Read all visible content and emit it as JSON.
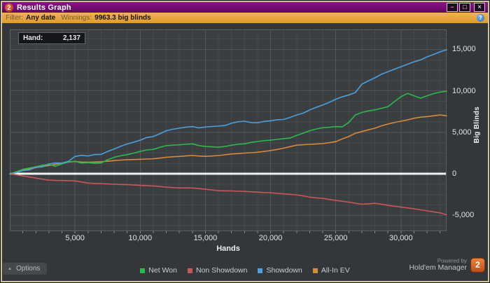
{
  "window": {
    "title": "Results Graph",
    "app_badge": "2",
    "controls": {
      "minimize": "−",
      "maximize": "□",
      "close": "×"
    }
  },
  "filter_bar": {
    "filter_label": "Filter:",
    "filter_value": "Any date",
    "winnings_label": "Winnings:",
    "winnings_value": "9963.3 big blinds",
    "help_glyph": "?"
  },
  "tooltip": {
    "label": "Hand:",
    "value": "2,137"
  },
  "chart_data": {
    "type": "line",
    "xlabel": "Hands",
    "ylabel": "Big Blinds",
    "xlim": [
      0,
      33500
    ],
    "ylim": [
      -6900,
      17400
    ],
    "x_ticks": [
      5000,
      10000,
      15000,
      20000,
      25000,
      30000
    ],
    "y_ticks": [
      -5000,
      0,
      5000,
      10000,
      15000
    ],
    "x_minor_step": 1000,
    "x_major_step": 5000,
    "y_minor_step": 1250,
    "y_major_step": 5000,
    "grid": true,
    "legend_position": "bottom",
    "colors": {
      "plot_bg": "#3a3e41",
      "grid_minor": "#45494c",
      "grid_major": "#52575a",
      "zero_line": "#f2f2f2",
      "plot_border": "#5c6166",
      "tick": "#8a8e91"
    },
    "series": [
      {
        "name": "Net Won",
        "slug": "net-won",
        "color": "#2eb84b",
        "z": 3,
        "points": [
          [
            0,
            0
          ],
          [
            500,
            260
          ],
          [
            1000,
            550
          ],
          [
            1500,
            700
          ],
          [
            2000,
            860
          ],
          [
            2500,
            1050
          ],
          [
            3000,
            1120
          ],
          [
            3500,
            920
          ],
          [
            4000,
            1200
          ],
          [
            4500,
            1440
          ],
          [
            5000,
            1520
          ],
          [
            5500,
            1310
          ],
          [
            6000,
            1360
          ],
          [
            6500,
            1270
          ],
          [
            7000,
            1310
          ],
          [
            7500,
            1700
          ],
          [
            8000,
            2000
          ],
          [
            8500,
            2190
          ],
          [
            9000,
            2310
          ],
          [
            9500,
            2500
          ],
          [
            10000,
            2700
          ],
          [
            10500,
            2890
          ],
          [
            11000,
            2950
          ],
          [
            11500,
            3190
          ],
          [
            12000,
            3400
          ],
          [
            12500,
            3460
          ],
          [
            13000,
            3500
          ],
          [
            13500,
            3560
          ],
          [
            14000,
            3620
          ],
          [
            14500,
            3410
          ],
          [
            15000,
            3300
          ],
          [
            15500,
            3260
          ],
          [
            16000,
            3210
          ],
          [
            16500,
            3300
          ],
          [
            17000,
            3450
          ],
          [
            17500,
            3560
          ],
          [
            18000,
            3620
          ],
          [
            18500,
            3790
          ],
          [
            19000,
            3900
          ],
          [
            19500,
            4000
          ],
          [
            20000,
            4060
          ],
          [
            20500,
            4150
          ],
          [
            21000,
            4250
          ],
          [
            21500,
            4310
          ],
          [
            22000,
            4640
          ],
          [
            22500,
            4900
          ],
          [
            23000,
            5200
          ],
          [
            23500,
            5410
          ],
          [
            24000,
            5560
          ],
          [
            24500,
            5610
          ],
          [
            25000,
            5700
          ],
          [
            25500,
            5660
          ],
          [
            26000,
            6200
          ],
          [
            26500,
            7100
          ],
          [
            27000,
            7400
          ],
          [
            27500,
            7590
          ],
          [
            28000,
            7710
          ],
          [
            28500,
            7900
          ],
          [
            29000,
            8090
          ],
          [
            29500,
            8700
          ],
          [
            30000,
            9300
          ],
          [
            30500,
            9700
          ],
          [
            31000,
            9400
          ],
          [
            31500,
            9120
          ],
          [
            32000,
            9400
          ],
          [
            32500,
            9660
          ],
          [
            33000,
            9850
          ],
          [
            33500,
            9963
          ]
        ]
      },
      {
        "name": "Non Showdown",
        "slug": "non-showdown",
        "color": "#c95757",
        "z": 1,
        "points": [
          [
            0,
            0
          ],
          [
            500,
            -120
          ],
          [
            1000,
            -250
          ],
          [
            1500,
            -380
          ],
          [
            2000,
            -500
          ],
          [
            2500,
            -640
          ],
          [
            3000,
            -760
          ],
          [
            3500,
            -790
          ],
          [
            4000,
            -800
          ],
          [
            4500,
            -820
          ],
          [
            5000,
            -840
          ],
          [
            5500,
            -980
          ],
          [
            6000,
            -1100
          ],
          [
            6500,
            -1150
          ],
          [
            7000,
            -1180
          ],
          [
            7500,
            -1210
          ],
          [
            8000,
            -1250
          ],
          [
            8500,
            -1270
          ],
          [
            9000,
            -1300
          ],
          [
            9500,
            -1340
          ],
          [
            10000,
            -1380
          ],
          [
            10500,
            -1420
          ],
          [
            11000,
            -1450
          ],
          [
            11500,
            -1520
          ],
          [
            12000,
            -1600
          ],
          [
            12500,
            -1650
          ],
          [
            13000,
            -1690
          ],
          [
            13500,
            -1690
          ],
          [
            14000,
            -1690
          ],
          [
            14500,
            -1770
          ],
          [
            15000,
            -1850
          ],
          [
            15500,
            -1940
          ],
          [
            16000,
            -2020
          ],
          [
            16500,
            -2040
          ],
          [
            17000,
            -2060
          ],
          [
            17500,
            -2090
          ],
          [
            18000,
            -2110
          ],
          [
            18500,
            -2160
          ],
          [
            19000,
            -2200
          ],
          [
            19500,
            -2240
          ],
          [
            20000,
            -2280
          ],
          [
            20500,
            -2340
          ],
          [
            21000,
            -2400
          ],
          [
            21500,
            -2470
          ],
          [
            22000,
            -2530
          ],
          [
            22500,
            -2660
          ],
          [
            23000,
            -2800
          ],
          [
            23500,
            -2880
          ],
          [
            24000,
            -2950
          ],
          [
            24500,
            -3080
          ],
          [
            25000,
            -3200
          ],
          [
            25500,
            -3300
          ],
          [
            26000,
            -3400
          ],
          [
            26500,
            -3530
          ],
          [
            27000,
            -3650
          ],
          [
            27500,
            -3600
          ],
          [
            28000,
            -3540
          ],
          [
            28500,
            -3660
          ],
          [
            29000,
            -3790
          ],
          [
            29500,
            -3900
          ],
          [
            30000,
            -4000
          ],
          [
            30500,
            -4100
          ],
          [
            31000,
            -4210
          ],
          [
            31500,
            -4330
          ],
          [
            32000,
            -4450
          ],
          [
            32500,
            -4570
          ],
          [
            33000,
            -4700
          ],
          [
            33500,
            -4930
          ]
        ]
      },
      {
        "name": "Showdown",
        "slug": "showdown",
        "color": "#4c9fdc",
        "z": 4,
        "points": [
          [
            0,
            0
          ],
          [
            500,
            150
          ],
          [
            1000,
            400
          ],
          [
            1500,
            480
          ],
          [
            2000,
            800
          ],
          [
            2500,
            840
          ],
          [
            3000,
            1200
          ],
          [
            3500,
            1320
          ],
          [
            4000,
            1300
          ],
          [
            4500,
            1500
          ],
          [
            5000,
            2100
          ],
          [
            5500,
            2230
          ],
          [
            6000,
            2150
          ],
          [
            6500,
            2320
          ],
          [
            7000,
            2350
          ],
          [
            7500,
            2700
          ],
          [
            8000,
            3000
          ],
          [
            8500,
            3320
          ],
          [
            9000,
            3600
          ],
          [
            9500,
            3820
          ],
          [
            10000,
            4050
          ],
          [
            10500,
            4380
          ],
          [
            11000,
            4500
          ],
          [
            11500,
            4830
          ],
          [
            12000,
            5200
          ],
          [
            12500,
            5380
          ],
          [
            13000,
            5500
          ],
          [
            13500,
            5620
          ],
          [
            14000,
            5700
          ],
          [
            14500,
            5540
          ],
          [
            15000,
            5650
          ],
          [
            15500,
            5710
          ],
          [
            16000,
            5760
          ],
          [
            16500,
            5820
          ],
          [
            17000,
            6100
          ],
          [
            17500,
            6280
          ],
          [
            18000,
            6350
          ],
          [
            18500,
            6180
          ],
          [
            19000,
            6150
          ],
          [
            19500,
            6320
          ],
          [
            20000,
            6400
          ],
          [
            20500,
            6520
          ],
          [
            21000,
            6560
          ],
          [
            21500,
            6800
          ],
          [
            22000,
            7100
          ],
          [
            22500,
            7320
          ],
          [
            23000,
            7700
          ],
          [
            23500,
            8020
          ],
          [
            24000,
            8300
          ],
          [
            24500,
            8620
          ],
          [
            25000,
            9000
          ],
          [
            25500,
            9280
          ],
          [
            26000,
            9500
          ],
          [
            26500,
            9800
          ],
          [
            27000,
            10800
          ],
          [
            27500,
            11200
          ],
          [
            28000,
            11580
          ],
          [
            28500,
            12000
          ],
          [
            29000,
            12300
          ],
          [
            29500,
            12620
          ],
          [
            30000,
            12900
          ],
          [
            30500,
            13200
          ],
          [
            31000,
            13500
          ],
          [
            31500,
            13720
          ],
          [
            32000,
            14100
          ],
          [
            32500,
            14380
          ],
          [
            33000,
            14700
          ],
          [
            33500,
            14950
          ]
        ]
      },
      {
        "name": "All-In EV",
        "slug": "all-in-ev",
        "color": "#d9893b",
        "z": 2,
        "points": [
          [
            0,
            0
          ],
          [
            500,
            200
          ],
          [
            1000,
            420
          ],
          [
            1500,
            600
          ],
          [
            2000,
            760
          ],
          [
            2500,
            900
          ],
          [
            3000,
            1010
          ],
          [
            3500,
            1150
          ],
          [
            4000,
            1300
          ],
          [
            4500,
            1420
          ],
          [
            5000,
            1500
          ],
          [
            5500,
            1430
          ],
          [
            6000,
            1400
          ],
          [
            6500,
            1430
          ],
          [
            7000,
            1460
          ],
          [
            7500,
            1530
          ],
          [
            8000,
            1600
          ],
          [
            8500,
            1660
          ],
          [
            9000,
            1700
          ],
          [
            9500,
            1730
          ],
          [
            10000,
            1760
          ],
          [
            10500,
            1790
          ],
          [
            11000,
            1820
          ],
          [
            11500,
            1900
          ],
          [
            12000,
            2000
          ],
          [
            12500,
            2060
          ],
          [
            13000,
            2100
          ],
          [
            13500,
            2160
          ],
          [
            14000,
            2210
          ],
          [
            14500,
            2150
          ],
          [
            15000,
            2110
          ],
          [
            15500,
            2150
          ],
          [
            16000,
            2210
          ],
          [
            16500,
            2300
          ],
          [
            17000,
            2400
          ],
          [
            17500,
            2450
          ],
          [
            18000,
            2510
          ],
          [
            18500,
            2550
          ],
          [
            19000,
            2610
          ],
          [
            19500,
            2700
          ],
          [
            20000,
            2810
          ],
          [
            20500,
            2950
          ],
          [
            21000,
            3100
          ],
          [
            21500,
            3280
          ],
          [
            22000,
            3460
          ],
          [
            22500,
            3510
          ],
          [
            23000,
            3560
          ],
          [
            23500,
            3600
          ],
          [
            24000,
            3650
          ],
          [
            24500,
            3760
          ],
          [
            25000,
            3880
          ],
          [
            25500,
            4210
          ],
          [
            26000,
            4500
          ],
          [
            26500,
            4890
          ],
          [
            27000,
            5100
          ],
          [
            27500,
            5310
          ],
          [
            28000,
            5500
          ],
          [
            28500,
            5790
          ],
          [
            29000,
            6000
          ],
          [
            29500,
            6190
          ],
          [
            30000,
            6350
          ],
          [
            30500,
            6500
          ],
          [
            31000,
            6700
          ],
          [
            31500,
            6830
          ],
          [
            32000,
            6900
          ],
          [
            32500,
            7000
          ],
          [
            33000,
            7100
          ],
          [
            33500,
            7000
          ]
        ]
      }
    ]
  },
  "footer": {
    "options_label": "Options",
    "options_caret": "▲",
    "powered_by_line1": "Powered by",
    "powered_by_line2": "Hold'em Manager",
    "brand_badge": "2"
  }
}
